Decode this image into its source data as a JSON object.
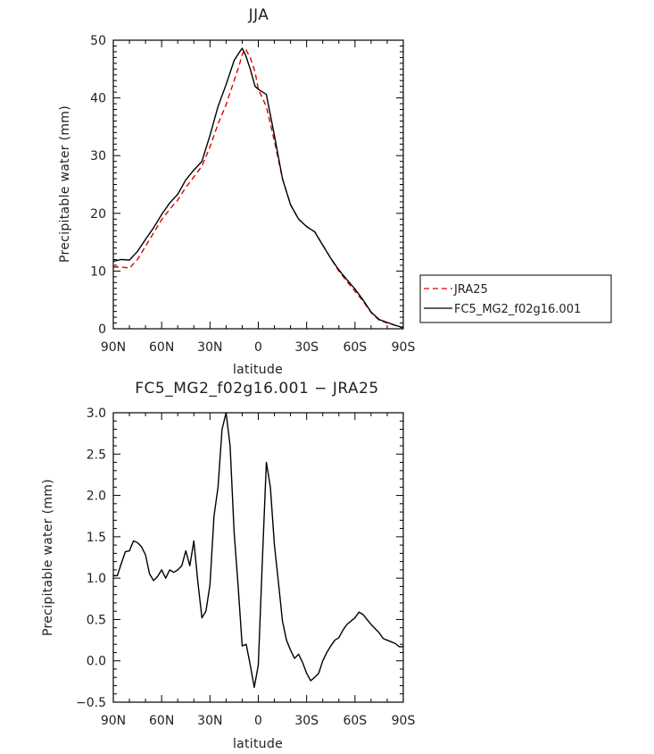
{
  "chart_data": [
    {
      "type": "line",
      "title": "JJA",
      "xlabel": "latitude",
      "ylabel": "Precipitable water (mm)",
      "xlim": [
        90,
        -90
      ],
      "ylim": [
        0,
        50
      ],
      "xticks": [
        90,
        60,
        30,
        0,
        -30,
        -60,
        -90
      ],
      "xtick_labels": [
        "90N",
        "60N",
        "30N",
        "0",
        "30S",
        "60S",
        "90S"
      ],
      "yticks": [
        0,
        10,
        20,
        30,
        40,
        50
      ],
      "ytick_labels": [
        "0",
        "10",
        "20",
        "30",
        "40",
        "50"
      ],
      "legend_position": "right",
      "series": [
        {
          "name": "JRA25",
          "color": "#dd0000",
          "dash": "dashed",
          "x": [
            90,
            85,
            80,
            75,
            70,
            65,
            60,
            55,
            50,
            45,
            40,
            35,
            30,
            25,
            20,
            15,
            12,
            10,
            8,
            5,
            2,
            0,
            -5,
            -10,
            -15,
            -20,
            -25,
            -30,
            -35,
            -40,
            -45,
            -50,
            -55,
            -60,
            -65,
            -70,
            -75,
            -80,
            -85,
            -90
          ],
          "y": [
            10.7,
            10.7,
            10.5,
            12.0,
            14.3,
            16.6,
            18.9,
            20.7,
            22.3,
            24.5,
            26.3,
            28.2,
            31.5,
            35.5,
            38.8,
            43.0,
            45.5,
            47.5,
            48.5,
            47.0,
            44.5,
            41.5,
            38.5,
            32.5,
            26.0,
            21.5,
            19.0,
            17.7,
            16.8,
            14.5,
            12.2,
            10.0,
            8.2,
            6.5,
            4.8,
            2.8,
            1.5,
            1.0,
            0.6,
            0.1
          ]
        },
        {
          "name": "FC5_MG2_f02g16.001",
          "color": "#000000",
          "dash": "solid",
          "x": [
            90,
            85,
            80,
            75,
            70,
            65,
            60,
            55,
            50,
            45,
            40,
            35,
            30,
            25,
            20,
            15,
            12,
            10,
            8,
            5,
            2,
            0,
            -5,
            -10,
            -15,
            -20,
            -25,
            -30,
            -35,
            -40,
            -45,
            -50,
            -55,
            -60,
            -65,
            -70,
            -75,
            -80,
            -85,
            -90
          ],
          "y": [
            11.7,
            12.0,
            11.9,
            13.4,
            15.5,
            17.5,
            19.8,
            21.8,
            23.3,
            25.8,
            27.5,
            29.0,
            33.5,
            38.5,
            42.3,
            46.5,
            47.8,
            48.6,
            47.5,
            45.0,
            42.0,
            41.5,
            40.6,
            33.5,
            26.0,
            21.5,
            19.0,
            17.7,
            16.8,
            14.5,
            12.2,
            10.2,
            8.5,
            6.9,
            5.0,
            2.9,
            1.6,
            1.1,
            0.6,
            0.2
          ]
        }
      ]
    },
    {
      "type": "line",
      "title": "FC5_MG2_f02g16.001 − JRA25",
      "xlabel": "latitude",
      "ylabel": "Precipitable water (mm)",
      "xlim": [
        90,
        -90
      ],
      "ylim": [
        -0.5,
        3.0
      ],
      "xticks": [
        90,
        60,
        30,
        0,
        -30,
        -60,
        -90
      ],
      "xtick_labels": [
        "90N",
        "60N",
        "30N",
        "0",
        "30S",
        "60S",
        "90S"
      ],
      "yticks": [
        -0.5,
        0.0,
        0.5,
        1.0,
        1.5,
        2.0,
        2.5,
        3.0
      ],
      "ytick_labels": [
        "−0.5",
        "0.0",
        "0.5",
        "1.0",
        "1.5",
        "2.0",
        "2.5",
        "3.0"
      ],
      "series": [
        {
          "name": "",
          "color": "#000000",
          "dash": "solid",
          "x": [
            90,
            87.5,
            85,
            82.5,
            80,
            77.5,
            75,
            72.5,
            70,
            67.5,
            65,
            62.5,
            60,
            57.5,
            55,
            52.5,
            50,
            47.5,
            45,
            42.5,
            40,
            37.5,
            35,
            32.5,
            30,
            27.5,
            25,
            22.5,
            20,
            17.5,
            15,
            12.5,
            10,
            7.5,
            5,
            2.5,
            0,
            -2.5,
            -5,
            -7.5,
            -10,
            -12.5,
            -15,
            -17.5,
            -20,
            -22.5,
            -25,
            -27.5,
            -30,
            -32.5,
            -35,
            -37.5,
            -40,
            -42.5,
            -45,
            -47.5,
            -50,
            -52.5,
            -55,
            -57.5,
            -60,
            -62.5,
            -65,
            -67.5,
            -70,
            -72.5,
            -75,
            -77.5,
            -80,
            -82.5,
            -85,
            -87.5,
            -90
          ],
          "y": [
            1.03,
            1.03,
            1.18,
            1.32,
            1.33,
            1.45,
            1.43,
            1.38,
            1.28,
            1.05,
            0.97,
            1.02,
            1.1,
            1.0,
            1.1,
            1.07,
            1.1,
            1.15,
            1.33,
            1.15,
            1.45,
            0.95,
            0.52,
            0.6,
            0.92,
            1.75,
            2.1,
            2.8,
            3.0,
            2.6,
            1.55,
            0.9,
            0.18,
            0.2,
            -0.05,
            -0.32,
            -0.05,
            1.2,
            2.4,
            2.1,
            1.4,
            0.95,
            0.48,
            0.25,
            0.13,
            0.03,
            0.08,
            -0.02,
            -0.15,
            -0.24,
            -0.2,
            -0.15,
            0.0,
            0.1,
            0.18,
            0.25,
            0.28,
            0.37,
            0.44,
            0.48,
            0.52,
            0.59,
            0.56,
            0.5,
            0.44,
            0.39,
            0.34,
            0.27,
            0.25,
            0.23,
            0.21,
            0.17,
            0.17
          ]
        }
      ]
    }
  ]
}
